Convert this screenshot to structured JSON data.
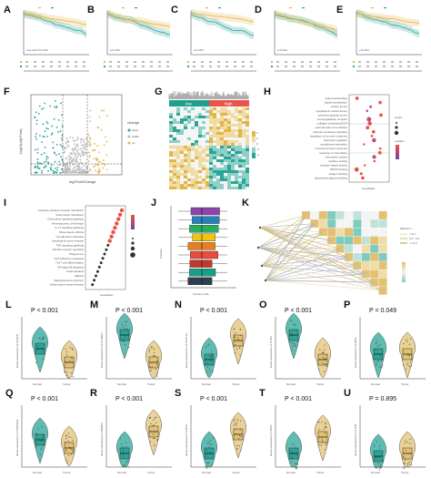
{
  "figure": {
    "row1": {
      "labels": [
        "A",
        "B",
        "C",
        "D",
        "E"
      ],
      "km_text": [
        "Log-rank P<0.001",
        "p<0.001",
        "p<0.001",
        "p<0.001",
        "p<0.001"
      ],
      "colors": {
        "low": "#e3b44b",
        "high": "#2aa598"
      }
    },
    "row2": {
      "labels": [
        "F",
        "G",
        "H"
      ],
      "volcano": {
        "xlabel": "log2FoldChange",
        "ylabel": "-log10(adj.P.val)",
        "legend_title": "change",
        "legend_items": [
          "down",
          "stable",
          "up"
        ],
        "colors": {
          "down": "#2aa598",
          "stable": "#bbbbbb",
          "up": "#e3b44b"
        }
      },
      "heatmap": {
        "groups": [
          "low",
          "high"
        ],
        "group_colors": {
          "low": "#1f9e8a",
          "high": "#e8544a"
        },
        "scale": [
          "4",
          "2",
          "0",
          "-2",
          "-4"
        ]
      },
      "go_dot": {
        "terms": [
          "isoprenoid binding",
          "signal transduction",
          "vesicle lumen",
          "cytoplasmic vesicle lumen",
          "secretory granule lumen",
          "immunoglobulin complex",
          "collagen-containing ECM",
          "external side of membrane",
          "plasma membrane signaling",
          "regulation of immune response",
          "leukocyte migration",
          "complement activation",
          "humoral immune response",
          "response to chemokine",
          "chemokine activity",
          "cytokine activity",
          "receptor ligand activity",
          "GPCR binding",
          "antigen binding",
          "glycosaminoglycan binding"
        ],
        "legend_count": "Count",
        "legend_p": "p.adjust",
        "xlabel": "GeneRatio"
      }
    },
    "row3": {
      "labels": [
        "I",
        "J",
        "K"
      ],
      "kegg_dot": {
        "terms": [
          "Cytokine-cytokine receptor interaction",
          "Viral protein interaction",
          "Chemokine signaling pathway",
          "Hematopoietic cell lineage",
          "IL-17 signaling pathway",
          "Rheumatoid arthritis",
          "Complement cascades",
          "Intestinal immune network",
          "TNF signaling pathway",
          "Toll-like receptor signaling",
          "Phagosome",
          "Cell adhesion molecules",
          "Th17 cell differentiation",
          "NF-kappa B signaling",
          "Leishmaniasis",
          "Malaria",
          "Staphylococcus infection",
          "Inflammatory bowel disease"
        ],
        "xlabel": "GeneRatio"
      },
      "immune_box": {
        "ylabel": "Fraction",
        "xlabel": "Immune cells",
        "colors": [
          "#8e44ad",
          "#2980b9",
          "#27ae60",
          "#f1c40f",
          "#e67e22",
          "#e74c3c",
          "#c0392b",
          "#16a085",
          "#2c3e50"
        ]
      },
      "corr": {
        "legend_title": "Mantel's r",
        "legend_items": [
          "< 0.2",
          "0.2 - 0.4",
          ">= 0.4"
        ]
      }
    },
    "violins": {
      "group_labels": [
        "Normal",
        "Tumor"
      ],
      "colors": {
        "normal": "#2aa598",
        "tumor": "#e3c173"
      },
      "panels": [
        {
          "label": "L",
          "p": "P < 0.001",
          "ylabel": "Gene expression of ADH1B"
        },
        {
          "label": "M",
          "p": "P < 0.001",
          "ylabel": "Gene expression of CTHRC1"
        },
        {
          "label": "N",
          "p": "P < 0.001",
          "ylabel": "Gene expression of CXCL13"
        },
        {
          "label": "O",
          "p": "P < 0.001",
          "ylabel": "Gene expression of FCN3"
        },
        {
          "label": "P",
          "p": "P = 0.049",
          "ylabel": "Gene expression of IRF4"
        },
        {
          "label": "Q",
          "p": "P < 0.001",
          "ylabel": "Gene expression of TNFRSF4"
        },
        {
          "label": "R",
          "p": "P < 0.001",
          "ylabel": "Gene expression of MMP11"
        },
        {
          "label": "S",
          "p": "P < 0.001",
          "ylabel": "Gene expression of CD19"
        },
        {
          "label": "T",
          "p": "P < 0.001",
          "ylabel": "Gene expression of SPP1"
        },
        {
          "label": "U",
          "p": "P = 0.895",
          "ylabel": "Gene expression of IL12B"
        }
      ]
    }
  }
}
